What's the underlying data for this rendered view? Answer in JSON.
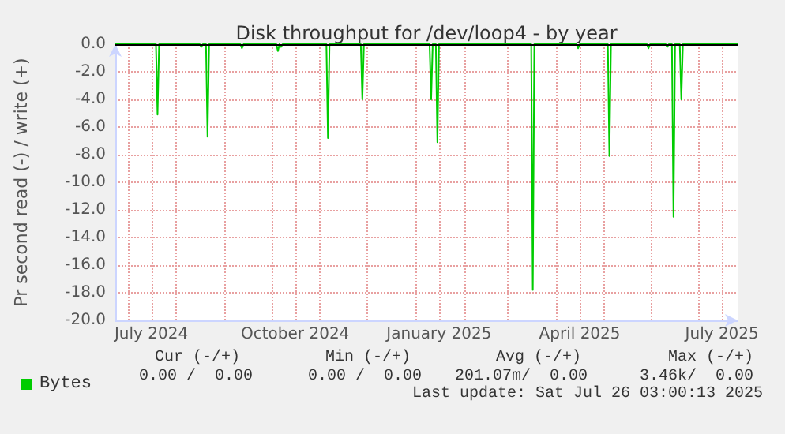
{
  "chart_data": {
    "type": "line",
    "title": "Disk throughput for /dev/loop4 - by year",
    "ylabel": "Pr second read (-) / write (+)",
    "x": [
      "2024-06-23",
      "2024-07-19",
      "2024-07-20",
      "2024-07-21",
      "2024-08-16",
      "2024-08-17",
      "2024-08-18",
      "2024-08-20",
      "2024-08-21",
      "2024-08-22",
      "2024-09-11",
      "2024-09-12",
      "2024-09-13",
      "2024-10-04",
      "2024-10-05",
      "2024-10-06",
      "2024-10-07",
      "2024-10-08",
      "2024-11-05",
      "2024-11-06",
      "2024-11-07",
      "2024-11-27",
      "2024-11-28",
      "2024-11-29",
      "2025-01-10",
      "2025-01-11",
      "2025-01-12",
      "2025-01-14",
      "2025-01-15",
      "2025-01-16",
      "2025-03-16",
      "2025-03-17",
      "2025-03-18",
      "2025-04-14",
      "2025-04-15",
      "2025-04-16",
      "2025-05-04",
      "2025-05-05",
      "2025-05-06",
      "2025-05-29",
      "2025-05-30",
      "2025-05-31",
      "2025-06-10",
      "2025-06-11",
      "2025-06-12",
      "2025-06-14",
      "2025-06-15",
      "2025-06-16",
      "2025-06-19",
      "2025-06-20",
      "2025-06-21",
      "2025-07-26"
    ],
    "series": [
      {
        "name": "Bytes",
        "color": "#00cc00",
        "values": [
          0,
          0,
          -5.1,
          0,
          0,
          -0.2,
          0,
          0,
          -6.7,
          0,
          0,
          -0.3,
          0,
          0,
          -0.5,
          0,
          -0.2,
          0,
          0,
          -6.8,
          0,
          0,
          -4.0,
          0,
          0,
          -4.0,
          0,
          0,
          -7.1,
          0,
          0,
          -17.8,
          0,
          0,
          -0.3,
          0,
          0,
          -8.1,
          0,
          0,
          -0.3,
          0,
          0,
          -0.2,
          0,
          0,
          -12.5,
          0,
          0,
          -4.0,
          0,
          0
        ]
      }
    ],
    "xlim": [
      "2024-06-23",
      "2025-07-26"
    ],
    "xticks": [
      {
        "value": "2024-07-01",
        "label": null
      },
      {
        "value": "2024-07-16",
        "label": "July 2024"
      },
      {
        "value": "2024-08-01",
        "label": null
      },
      {
        "value": "2024-09-01",
        "label": null
      },
      {
        "value": "2024-10-01",
        "label": null
      },
      {
        "value": "2024-10-16",
        "label": "October 2024"
      },
      {
        "value": "2024-11-01",
        "label": null
      },
      {
        "value": "2024-12-01",
        "label": null
      },
      {
        "value": "2025-01-01",
        "label": null
      },
      {
        "value": "2025-01-16",
        "label": "January 2025"
      },
      {
        "value": "2025-02-01",
        "label": null
      },
      {
        "value": "2025-03-01",
        "label": null
      },
      {
        "value": "2025-04-01",
        "label": null
      },
      {
        "value": "2025-04-16",
        "label": "April 2025"
      },
      {
        "value": "2025-05-01",
        "label": null
      },
      {
        "value": "2025-06-01",
        "label": null
      },
      {
        "value": "2025-07-01",
        "label": null
      },
      {
        "value": "2025-07-16",
        "label": "July 2025"
      }
    ],
    "ylim": [
      -20,
      0
    ],
    "yticks": [
      {
        "value": 0,
        "label": "0.0"
      },
      {
        "value": -2,
        "label": "-2.0"
      },
      {
        "value": -4,
        "label": "-4.0"
      },
      {
        "value": -6,
        "label": "-6.0"
      },
      {
        "value": -8,
        "label": "-8.0"
      },
      {
        "value": -10,
        "label": "-10.0"
      },
      {
        "value": -12,
        "label": "-12.0"
      },
      {
        "value": -14,
        "label": "-14.0"
      },
      {
        "value": -16,
        "label": "-16.0"
      },
      {
        "value": -18,
        "label": "-18.0"
      },
      {
        "value": -20,
        "label": "-20.0"
      }
    ],
    "ref_lines": [
      {
        "axis": "y",
        "value": 0,
        "label": null,
        "color": "#000000"
      }
    ],
    "grid": true,
    "legend": "bottom left",
    "marker": "none",
    "line_style": "solid",
    "annotations": [
      "Cur (-/+)",
      "Min (-/+)",
      "Avg (-/+)",
      "Max (-/+)",
      "0.00 /  0.00",
      "0.00 /  0.00",
      "201.07m/  0.00",
      "3.46k/  0.00",
      "Last update: Sat Jul 26 03:00:13 2025"
    ]
  }
}
